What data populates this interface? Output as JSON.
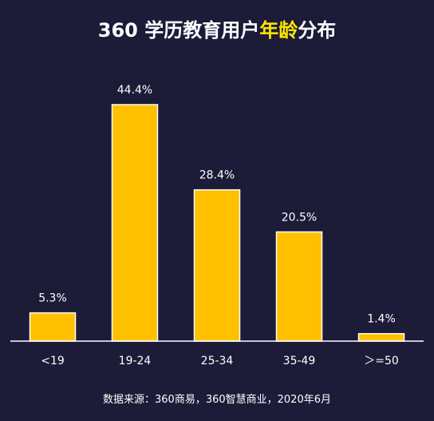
{
  "title": {
    "part1": "360 学历教育用户",
    "highlight": "年龄",
    "part2": "分布"
  },
  "source": "数据来源：360商易，360智慧商业，2020年6月",
  "colors": {
    "background": "#1c1b38",
    "bar": "#ffc000",
    "bar_border": "#ffffff",
    "title_highlight": "#ffe600",
    "text": "#ffffff"
  },
  "chart_data": {
    "type": "bar",
    "title": "360 学历教育用户年龄分布",
    "categories": [
      "<19",
      "19-24",
      "25-34",
      "35-49",
      "＞=50"
    ],
    "values": [
      5.3,
      44.4,
      28.4,
      20.5,
      1.4
    ],
    "data_labels": [
      "5.3%",
      "44.4%",
      "28.4%",
      "20.5%",
      "1.4%"
    ],
    "unit": "%",
    "xlabel": "",
    "ylabel": "",
    "ylim": [
      0,
      44.4
    ],
    "grid": false,
    "legend": "none"
  }
}
